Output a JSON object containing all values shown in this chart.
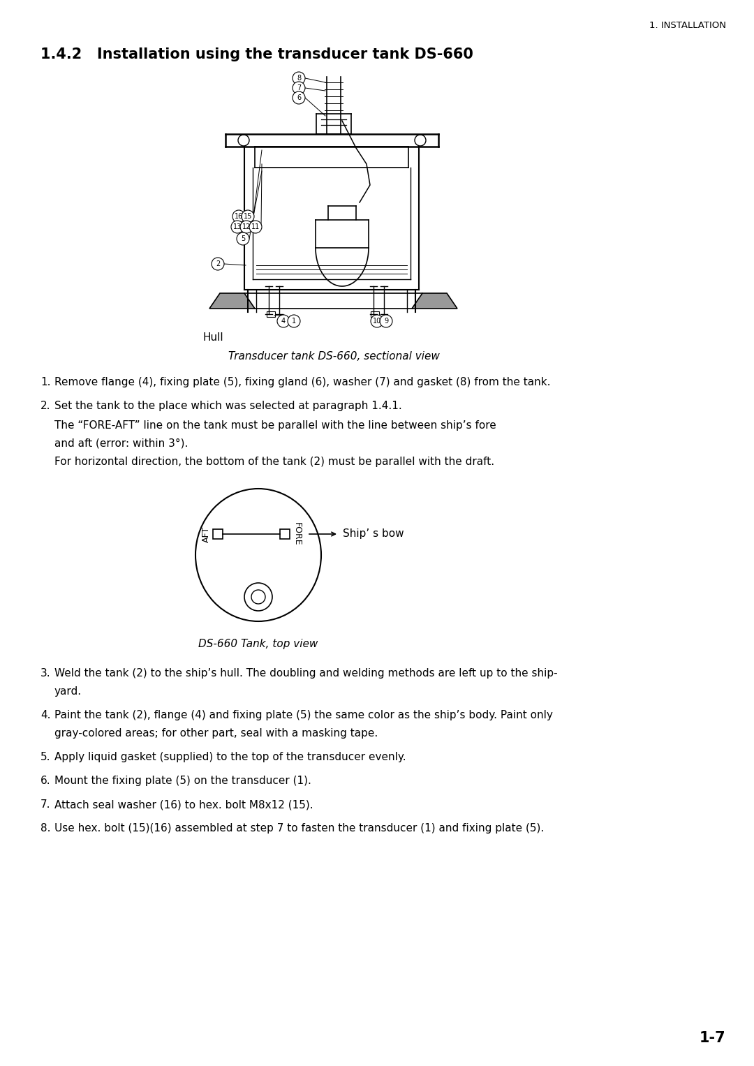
{
  "page_title_section": "1. INSTALLATION",
  "heading_number": "1.4.2",
  "heading_text": "Installation using the transducer tank DS-660",
  "diagram1_caption": "Transducer tank DS-660, sectional view",
  "diagram2_caption": "DS-660 Tank, top view",
  "hull_label": "Hull",
  "ship_bow_label": "Ship’ s bow",
  "aft_label": "AFT",
  "fore_label": "FORE",
  "instructions": [
    "Remove flange (4), fixing plate (5), fixing gland (6), washer (7) and gasket (8) from the tank.",
    "Set the tank to the place which was selected at paragraph 1.4.1.",
    "The “FORE-AFT” line on the tank must be parallel with the line between ship’s fore\nand aft (error: within 3°).\nFor horizontal direction, the bottom of the tank (2) must be parallel with the draft.",
    "Weld the tank (2) to the ship’s hull. The doubling and welding methods are left up to the ship-\nyard.",
    "Paint the tank (2), flange (4) and fixing plate (5) the same color as the ship’s body. Paint only\ngray-colored areas; for other part, seal with a masking tape.",
    "Apply liquid gasket (supplied) to the top of the transducer evenly.",
    "Mount the fixing plate (5) on the transducer (1).",
    "Attach seal washer (16) to hex. bolt M8x12 (15).",
    "Use hex. bolt (15)(16) assembled at step 7 to fasten the transducer (1) and fixing plate (5)."
  ],
  "page_number": "1-7",
  "bg_color": "#ffffff",
  "text_color": "#000000",
  "line_color": "#000000"
}
